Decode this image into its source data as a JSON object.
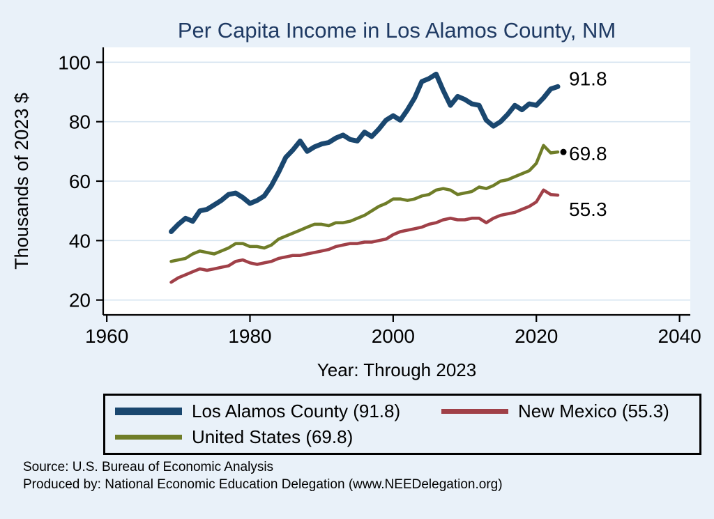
{
  "title": "Per Capita Income in Los Alamos County, NM",
  "y_axis": {
    "label": "Thousands of 2023 $",
    "ticks": [
      20,
      40,
      60,
      80,
      100
    ]
  },
  "x_axis": {
    "label": "Year: Through 2023",
    "ticks": [
      1960,
      1980,
      2000,
      2020,
      2040
    ]
  },
  "chart_data": {
    "type": "line",
    "title": "Per Capita Income in Los Alamos County, NM",
    "xlabel": "Year: Through 2023",
    "ylabel": "Thousands of 2023 $",
    "x_range": [
      1959.5,
      2041.5
    ],
    "y_range": [
      15,
      105
    ],
    "grid": "horizontal",
    "legend_position": "bottom",
    "x": [
      1969,
      1970,
      1971,
      1972,
      1973,
      1974,
      1975,
      1976,
      1977,
      1978,
      1979,
      1980,
      1981,
      1982,
      1983,
      1984,
      1985,
      1986,
      1987,
      1988,
      1989,
      1990,
      1991,
      1992,
      1993,
      1994,
      1995,
      1996,
      1997,
      1998,
      1999,
      2000,
      2001,
      2002,
      2003,
      2004,
      2005,
      2006,
      2007,
      2008,
      2009,
      2010,
      2011,
      2012,
      2013,
      2014,
      2015,
      2016,
      2017,
      2018,
      2019,
      2020,
      2021,
      2022,
      2023
    ],
    "series": [
      {
        "name": "Los Alamos County",
        "color": "#1a476f",
        "width": 7,
        "end_label": "91.8",
        "end_marker": false,
        "values": [
          43,
          45.5,
          47.5,
          46.5,
          50,
          50.5,
          52,
          53.5,
          55.5,
          56,
          54.5,
          52.5,
          53.5,
          55,
          58.5,
          63,
          68,
          70.5,
          73.5,
          70,
          71.5,
          72.5,
          73,
          74.5,
          75.5,
          74,
          73.5,
          76.5,
          75,
          77.5,
          80.5,
          82,
          80.5,
          84,
          88,
          93.5,
          94.5,
          96,
          90.5,
          85.5,
          88.5,
          87.5,
          86,
          85.5,
          80.5,
          78.5,
          80,
          82.5,
          85.5,
          84,
          86,
          85.5,
          88,
          91,
          91.8
        ]
      },
      {
        "name": "United States",
        "color": "#6f7d28",
        "width": 4.5,
        "end_label": "69.8",
        "end_marker": true,
        "values": [
          33,
          33.5,
          34,
          35.5,
          36.5,
          36,
          35.5,
          36.5,
          37.5,
          39,
          39,
          38,
          38,
          37.5,
          38.5,
          40.5,
          41.5,
          42.5,
          43.5,
          44.5,
          45.5,
          45.5,
          45,
          46,
          46,
          46.5,
          47.5,
          48.5,
          50,
          51.5,
          52.5,
          54,
          54,
          53.5,
          54,
          55,
          55.5,
          57,
          57.5,
          57,
          55.5,
          56,
          56.5,
          58,
          57.5,
          58.5,
          60,
          60.5,
          61.5,
          62.5,
          63.5,
          66,
          72,
          69.5,
          69.8
        ]
      },
      {
        "name": "New Mexico",
        "color": "#a04048",
        "width": 4.5,
        "end_label": "55.3",
        "end_marker": false,
        "values": [
          26,
          27.5,
          28.5,
          29.5,
          30.5,
          30,
          30.5,
          31,
          31.5,
          33,
          33.5,
          32.5,
          32,
          32.5,
          33,
          34,
          34.5,
          35,
          35,
          35.5,
          36,
          36.5,
          37,
          38,
          38.5,
          39,
          39,
          39.5,
          39.5,
          40,
          40.5,
          42,
          43,
          43.5,
          44,
          44.5,
          45.5,
          46,
          47,
          47.5,
          47,
          47,
          47.5,
          47.5,
          46,
          47.5,
          48.5,
          49,
          49.5,
          50.5,
          51.5,
          53,
          57,
          55.5,
          55.3
        ]
      }
    ]
  },
  "legend": {
    "items": [
      {
        "label": "Los Alamos County (91.8)",
        "color": "#1a476f",
        "thick": 11
      },
      {
        "label": "New Mexico (55.3)",
        "color": "#a04048",
        "thick": 7
      },
      {
        "label": "United States (69.8)",
        "color": "#6f7d28",
        "thick": 7
      }
    ]
  },
  "footer": {
    "line1": "Source: U.S. Bureau of Economic Analysis",
    "line2": "Produced by: National Economic Education Delegation (www.NEEDelegation.org)"
  }
}
